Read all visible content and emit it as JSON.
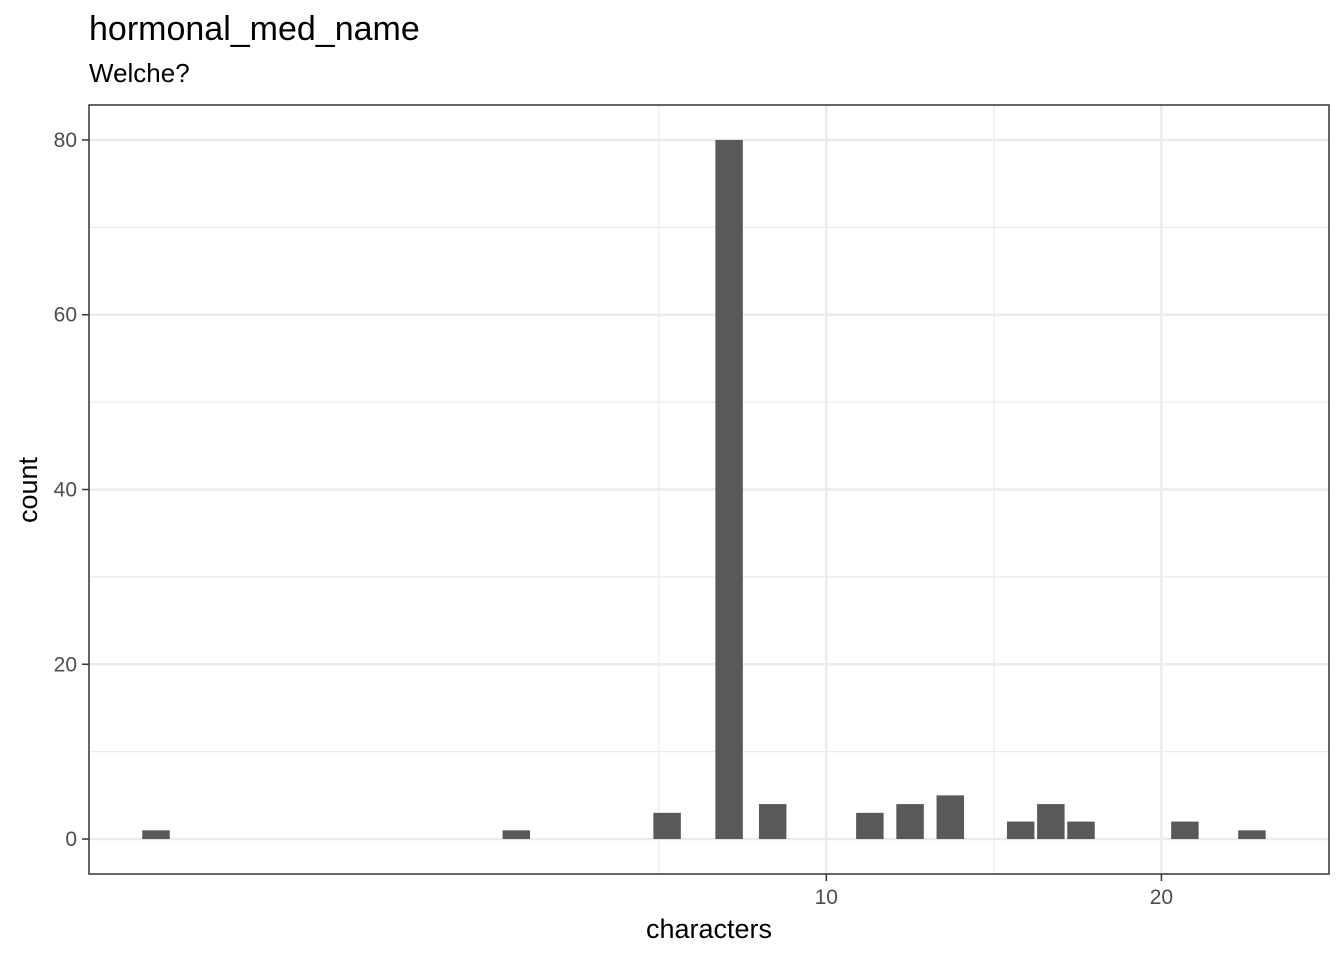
{
  "chart_data": {
    "type": "bar",
    "title": "hormonal_med_name",
    "subtitle": "Welche?",
    "xlabel": "characters",
    "ylabel": "count",
    "x_ticks": [
      10,
      20
    ],
    "y_ticks": [
      0,
      20,
      40,
      60,
      80
    ],
    "xlim": [
      -12,
      25
    ],
    "ylim": [
      -4,
      84
    ],
    "grid": true,
    "bars": [
      {
        "x": -10,
        "count": 1
      },
      {
        "x": 0.75,
        "count": 1
      },
      {
        "x": 5.25,
        "count": 3
      },
      {
        "x": 7.1,
        "count": 80
      },
      {
        "x": 8.4,
        "count": 4
      },
      {
        "x": 11.3,
        "count": 3
      },
      {
        "x": 12.5,
        "count": 4
      },
      {
        "x": 13.7,
        "count": 5
      },
      {
        "x": 15.8,
        "count": 2
      },
      {
        "x": 16.7,
        "count": 4
      },
      {
        "x": 17.6,
        "count": 2
      },
      {
        "x": 20.7,
        "count": 2
      },
      {
        "x": 22.7,
        "count": 1
      }
    ],
    "bar_color": "#595959"
  }
}
